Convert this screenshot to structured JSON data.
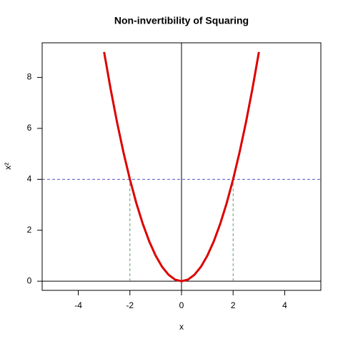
{
  "chart_data": {
    "type": "line",
    "title": "Non-invertibility of Squaring",
    "xlabel": "x",
    "ylabel": "x²",
    "x": [
      -3,
      -2.75,
      -2.5,
      -2.25,
      -2,
      -1.75,
      -1.5,
      -1.25,
      -1,
      -0.75,
      -0.5,
      -0.25,
      0,
      0.25,
      0.5,
      0.75,
      1,
      1.25,
      1.5,
      1.75,
      2,
      2.25,
      2.5,
      2.75,
      3
    ],
    "series": [
      {
        "color": "#dd0000",
        "values": [
          9,
          7.5625,
          6.25,
          5.0625,
          4,
          3.0625,
          2.25,
          1.5625,
          1,
          0.5625,
          0.25,
          0.0625,
          0,
          0.0625,
          0.25,
          0.5625,
          1,
          1.5625,
          2.25,
          3.0625,
          4,
          5.0625,
          6.25,
          7.5625,
          9
        ]
      }
    ],
    "hlines": [
      {
        "y": 0,
        "color": "#000000",
        "dashed": false
      },
      {
        "y": 4,
        "color": "#5555cc",
        "dashed": true
      }
    ],
    "vlines": [
      {
        "x": 0,
        "color": "#000000",
        "dashed": false
      }
    ],
    "segments": [
      {
        "x": -2,
        "y": [
          0,
          4
        ],
        "color": "#669966",
        "dashed": true
      },
      {
        "x": 2,
        "y": [
          0,
          4
        ],
        "color": "#669966",
        "dashed": true
      }
    ],
    "xlim": [
      -5.4,
      5.4
    ],
    "ylim": [
      -0.36,
      9.36
    ],
    "xticks": [
      -4,
      -2,
      0,
      2,
      4
    ],
    "yticks": [
      0,
      2,
      4,
      6,
      8
    ]
  }
}
